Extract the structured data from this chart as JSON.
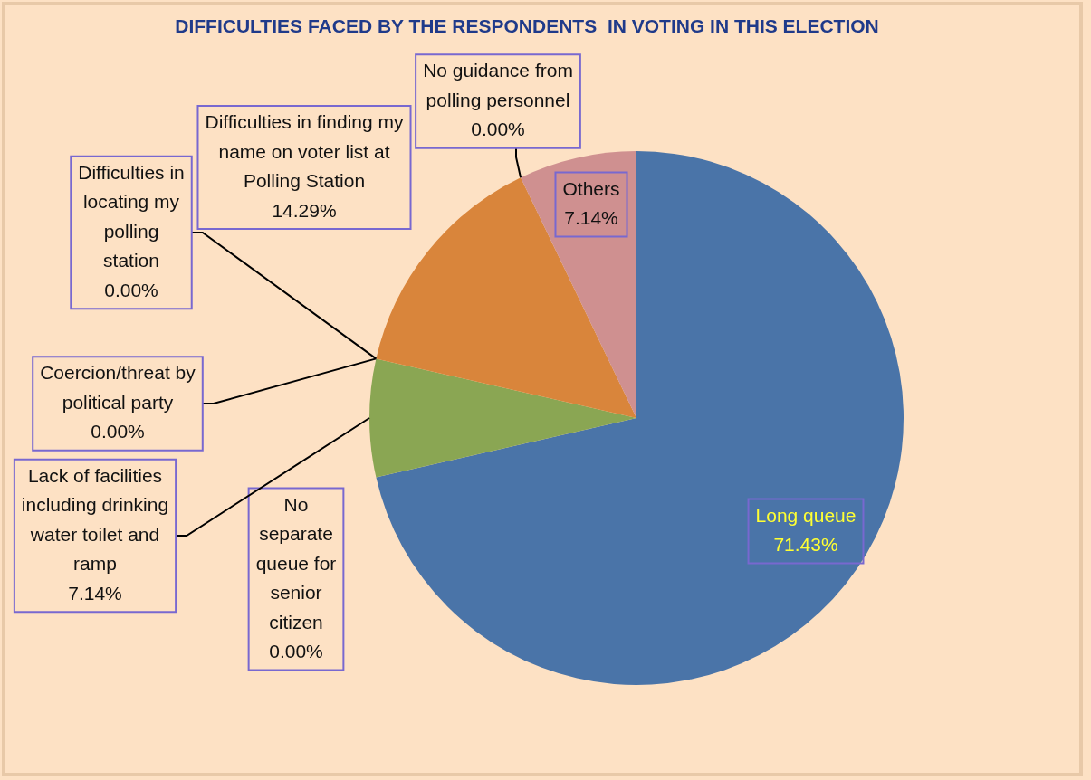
{
  "chart_data": {
    "type": "pie",
    "title": "DIFFICULTIES FACED BY THE RESPONDENTS  IN VOTING IN THIS ELECTION",
    "categories": [
      "Long queue",
      "No separate queue for senior citizen",
      "Lack of facilities including drinking water toilet and ramp",
      "Coercion/threat by political party",
      "Difficulties in locating my polling station",
      "Difficulties in finding my name on voter list at Polling Station",
      "No guidance from polling personnel",
      "Others"
    ],
    "values": [
      71.43,
      0,
      7.14,
      0,
      0,
      14.29,
      0,
      7.14
    ],
    "value_labels": [
      "71.43%",
      "0.00%",
      "7.14%",
      "0.00%",
      "0.00%",
      "14.29%",
      "0.00%",
      "7.14%"
    ],
    "colors": [
      "#4a74a8",
      "#6f8fc0",
      "#8aa653",
      "#9bb866",
      "#c9d98f",
      "#d9853b",
      "#e8a86a",
      "#cf9090"
    ],
    "legend": false
  }
}
